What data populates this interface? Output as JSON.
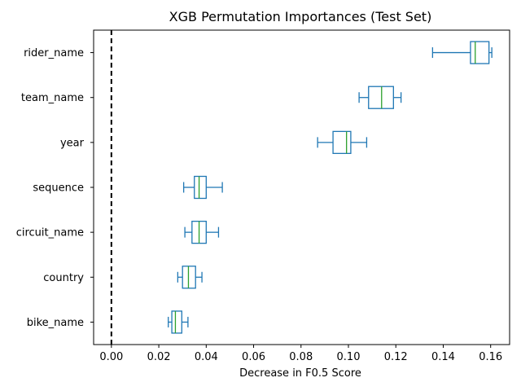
{
  "chart_data": {
    "type": "boxplot",
    "orientation": "horizontal",
    "title": "XGB Permutation Importances (Test Set)",
    "xlabel": "Decrease in F0.5 Score",
    "ylabel": "",
    "xlim": [
      -0.0075,
      0.168
    ],
    "xticks": [
      0.0,
      0.02,
      0.04,
      0.06,
      0.08,
      0.1,
      0.12,
      0.14,
      0.16
    ],
    "xtick_labels": [
      "0.00",
      "0.02",
      "0.04",
      "0.06",
      "0.08",
      "0.10",
      "0.12",
      "0.14",
      "0.16"
    ],
    "reference_line": {
      "x": 0.0,
      "style": "dashed",
      "color": "#000000"
    },
    "grid": false,
    "colors": {
      "box": "#1f77b4",
      "median": "#2ca02c"
    },
    "categories": [
      "rider_name",
      "team_name",
      "year",
      "sequence",
      "circuit_name",
      "country",
      "bike_name"
    ],
    "boxes": [
      {
        "label": "rider_name",
        "whislo": 0.1355,
        "q1": 0.1515,
        "med": 0.1535,
        "q3": 0.1593,
        "whishi": 0.1605
      },
      {
        "label": "team_name",
        "whislo": 0.1045,
        "q1": 0.1085,
        "med": 0.114,
        "q3": 0.119,
        "whishi": 0.1222
      },
      {
        "label": "year",
        "whislo": 0.087,
        "q1": 0.0935,
        "med": 0.0992,
        "q3": 0.101,
        "whishi": 0.1077
      },
      {
        "label": "sequence",
        "whislo": 0.0305,
        "q1": 0.035,
        "med": 0.037,
        "q3": 0.04,
        "whishi": 0.0468
      },
      {
        "label": "circuit_name",
        "whislo": 0.031,
        "q1": 0.034,
        "med": 0.037,
        "q3": 0.04,
        "whishi": 0.0452
      },
      {
        "label": "country",
        "whislo": 0.028,
        "q1": 0.03,
        "med": 0.0325,
        "q3": 0.0355,
        "whishi": 0.0382
      },
      {
        "label": "bike_name",
        "whislo": 0.024,
        "q1": 0.0255,
        "med": 0.027,
        "q3": 0.0297,
        "whishi": 0.0323
      }
    ]
  }
}
